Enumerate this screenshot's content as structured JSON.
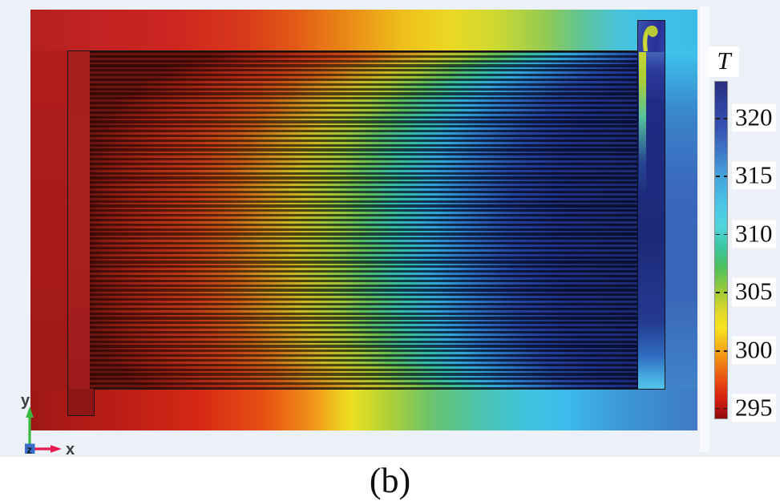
{
  "figure": {
    "caption": "(b)"
  },
  "axis_triad": {
    "x": "x",
    "y": "y",
    "z": "z",
    "x_color": "#e8174e",
    "y_color": "#3ab83e",
    "z_color": "#3a70cc"
  },
  "colorbar": {
    "title": "T",
    "ticks": [
      "320",
      "315",
      "310",
      "305",
      "300",
      "295"
    ],
    "tick_positions_pct": [
      10.9,
      28.0,
      45.2,
      62.4,
      79.6,
      96.6
    ],
    "gradient_stops": [
      [
        "0",
        "#28307e"
      ],
      [
        "7",
        "#2e3f9e"
      ],
      [
        "14",
        "#3854b2"
      ],
      [
        "20",
        "#3f74c6"
      ],
      [
        "28",
        "#45a2dc"
      ],
      [
        "36",
        "#4ac4e6"
      ],
      [
        "43",
        "#52d4dc"
      ],
      [
        "49",
        "#3ec6a2"
      ],
      [
        "55",
        "#4cc05e"
      ],
      [
        "62",
        "#9cca3a"
      ],
      [
        "69",
        "#e6da28"
      ],
      [
        "73",
        "#f6e41e"
      ],
      [
        "78",
        "#f6b81a"
      ],
      [
        "84",
        "#f07c12"
      ],
      [
        "89",
        "#e84a12"
      ],
      [
        "94",
        "#d62010"
      ],
      [
        "98",
        "#a81010"
      ],
      [
        "100",
        "#8c0c0c"
      ]
    ]
  },
  "heat_sink": {
    "fluid_stops": [
      [
        "0",
        "#6e1410"
      ],
      [
        "6",
        "#8e1c12"
      ],
      [
        "13",
        "#aa2816"
      ],
      [
        "21",
        "#c03a16"
      ],
      [
        "28",
        "#c85c16"
      ],
      [
        "34",
        "#cc8c1c"
      ],
      [
        "40",
        "#c8b824"
      ],
      [
        "46",
        "#a2c434"
      ],
      [
        "52",
        "#5cbc58"
      ],
      [
        "58",
        "#34bca4"
      ],
      [
        "64",
        "#30a8d8"
      ],
      [
        "71",
        "#2c74c4"
      ],
      [
        "79",
        "#2442a0"
      ],
      [
        "88",
        "#1e2e84"
      ],
      [
        "100",
        "#1c2a74"
      ]
    ],
    "wall_stops": [
      [
        "0",
        "#3a0a06"
      ],
      [
        "6",
        "#480e08"
      ],
      [
        "13",
        "#521408"
      ],
      [
        "21",
        "#581e08"
      ],
      [
        "28",
        "#5a2c0a"
      ],
      [
        "34",
        "#563c0c"
      ],
      [
        "40",
        "#4c440e"
      ],
      [
        "46",
        "#37461a"
      ],
      [
        "52",
        "#1e4430"
      ],
      [
        "58",
        "#123e46"
      ],
      [
        "64",
        "#103450"
      ],
      [
        "71",
        "#0e2448"
      ],
      [
        "79",
        "#0c183c"
      ],
      [
        "88",
        "#0a1234"
      ],
      [
        "100",
        "#0a1130"
      ]
    ],
    "plate_top_stops": [
      [
        "0",
        "#b42020"
      ],
      [
        "8",
        "#c02222"
      ],
      [
        "20",
        "#ca2420"
      ],
      [
        "32",
        "#d8381a"
      ],
      [
        "40",
        "#e25c16"
      ],
      [
        "48",
        "#ea8c16"
      ],
      [
        "56",
        "#eec01c"
      ],
      [
        "63",
        "#ecd824"
      ],
      [
        "70",
        "#ccd832"
      ],
      [
        "77",
        "#94ca50"
      ],
      [
        "83",
        "#5cc49c"
      ],
      [
        "88",
        "#48c2d8"
      ],
      [
        "94",
        "#3fc0ea"
      ],
      [
        "100",
        "#3cbce8"
      ]
    ],
    "plate_bottom_stops": [
      [
        "0",
        "#9e1818"
      ],
      [
        "12",
        "#b81c16"
      ],
      [
        "25",
        "#d42814"
      ],
      [
        "35",
        "#e85014"
      ],
      [
        "42",
        "#f09018"
      ],
      [
        "48",
        "#eee020"
      ],
      [
        "54",
        "#acd038"
      ],
      [
        "60",
        "#6cc46c"
      ],
      [
        "67",
        "#4cc4ac"
      ],
      [
        "74",
        "#40c4dc"
      ],
      [
        "80",
        "#3cbcec"
      ],
      [
        "88",
        "#3c9ad8"
      ],
      [
        "100",
        "#3f7ac2"
      ]
    ],
    "plate_left_stops": [
      [
        "0",
        "#b01d1d"
      ],
      [
        "50",
        "#a81a1a"
      ],
      [
        "100",
        "#a01818"
      ]
    ],
    "plate_right_stops": [
      [
        "0",
        "#3ec4ec"
      ],
      [
        "18",
        "#3a86cc"
      ],
      [
        "40",
        "#3a68bc"
      ],
      [
        "70",
        "#3a64b8"
      ],
      [
        "100",
        "#4084c8"
      ]
    ],
    "left_manifold_stops": [
      [
        "0",
        "#a61e1e"
      ],
      [
        "60",
        "#a82020"
      ],
      [
        "100",
        "#9c1a1a"
      ]
    ],
    "right_manifold_stops": [
      [
        "0",
        "#4468b8"
      ],
      [
        "6",
        "#2c3a9c"
      ],
      [
        "15",
        "#202c84"
      ],
      [
        "55",
        "#1c2878"
      ],
      [
        "80",
        "#233a90"
      ],
      [
        "90",
        "#2f6cc0"
      ],
      [
        "97",
        "#48b2e2"
      ],
      [
        "100",
        "#54c4e8"
      ]
    ],
    "plume_stops": [
      [
        "0",
        "#c8d632"
      ],
      [
        "20",
        "#aacf36"
      ],
      [
        "45",
        "#55c29c"
      ],
      [
        "75",
        "rgba(60,150,200,0.25)"
      ],
      [
        "100",
        "rgba(60,150,200,0)"
      ]
    ],
    "outlet_tab_stops": [
      [
        "0",
        "#3a55b4"
      ],
      [
        "40",
        "#2e3a9e"
      ],
      [
        "70",
        "#283096"
      ],
      [
        "100",
        "#3146a8"
      ]
    ],
    "inlet_color": "#8d1515",
    "outlet_swirl_color": "#c2d232"
  },
  "chart_data": {
    "type": "heatmap",
    "title": "T",
    "field": "2D temperature surface plot of a parallel microchannel heat sink (simulation result)",
    "colorbar": {
      "label": "T",
      "tick_values": [
        320,
        315,
        310,
        305,
        300,
        295
      ],
      "value_range": [
        294,
        323
      ],
      "orientation": "vertical",
      "position": "right",
      "colormap": "rainbow — dark blue = high (~323), dark red = low (~294)"
    },
    "channel_count": 72,
    "flow_description": "Coolant enters cold (~295, red) at the bottom-left inlet, flows right through ~72 parallel channels while heating up, collects in the right manifold (blue, ~315-320) and exits at the top-right outlet where a warm plume vortex is visible",
    "caption": "(b)",
    "axes_indicator": [
      "x",
      "y",
      "z"
    ]
  }
}
